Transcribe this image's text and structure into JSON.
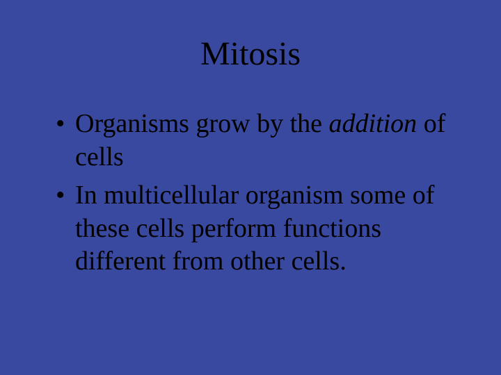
{
  "slide": {
    "title": "Mitosis",
    "background_color": "#3a49a0",
    "text_color": "#000000",
    "title_fontsize": 48,
    "body_fontsize": 38,
    "font_family": "Times New Roman",
    "bullets": [
      {
        "pre": "Organisms grow by the ",
        "em": "addition",
        "post": " of cells"
      },
      {
        "pre": "In multicellular organism some of these cells perform functions different from other cells.",
        "em": "",
        "post": ""
      }
    ]
  }
}
